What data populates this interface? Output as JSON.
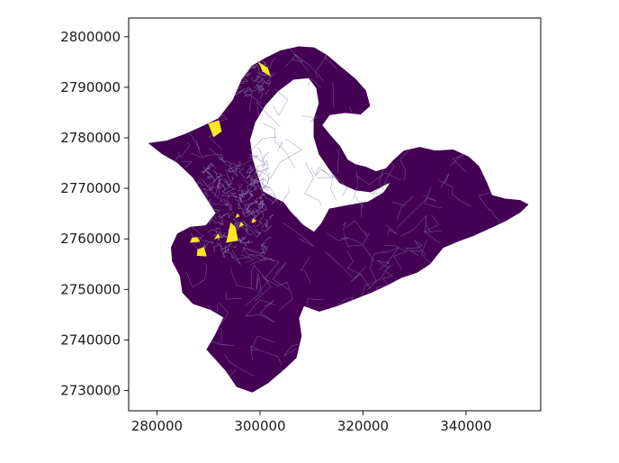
{
  "chart_data": {
    "type": "map",
    "xlim": [
      274500,
      354500
    ],
    "ylim": [
      2726000,
      2803700
    ],
    "x_ticks": [
      280000,
      300000,
      320000,
      340000
    ],
    "x_tick_labels": [
      "280000",
      "300000",
      "320000",
      "340000"
    ],
    "y_ticks": [
      2730000,
      2740000,
      2750000,
      2760000,
      2770000,
      2780000,
      2790000,
      2800000
    ],
    "y_tick_labels": [
      "2730000",
      "2740000",
      "2750000",
      "2760000",
      "2770000",
      "2780000",
      "2790000",
      "2800000"
    ],
    "colormap": "viridis",
    "colors": {
      "fill": "#440154",
      "highlight": "#fde725",
      "boundary": "#8a7aa6",
      "frame": "#1a1a1a",
      "background": "#ffffff"
    },
    "outline": [
      [
        278500,
        2778900
      ],
      [
        282000,
        2779400
      ],
      [
        285500,
        2780700
      ],
      [
        289000,
        2782300
      ],
      [
        292000,
        2783800
      ],
      [
        294800,
        2787500
      ],
      [
        296500,
        2791500
      ],
      [
        298500,
        2794200
      ],
      [
        301000,
        2795700
      ],
      [
        304000,
        2797200
      ],
      [
        307500,
        2798000
      ],
      [
        310500,
        2797800
      ],
      [
        313000,
        2796300
      ],
      [
        316000,
        2793700
      ],
      [
        318500,
        2791600
      ],
      [
        320500,
        2789300
      ],
      [
        321300,
        2786300
      ],
      [
        319500,
        2784700
      ],
      [
        316500,
        2785000
      ],
      [
        313500,
        2784600
      ],
      [
        312000,
        2782500
      ],
      [
        313500,
        2780600
      ],
      [
        315500,
        2778300
      ],
      [
        317000,
        2775600
      ],
      [
        318500,
        2774700
      ],
      [
        320500,
        2774200
      ],
      [
        322500,
        2773300
      ],
      [
        324500,
        2773900
      ],
      [
        326000,
        2775600
      ],
      [
        328000,
        2777400
      ],
      [
        331000,
        2778100
      ],
      [
        334000,
        2777400
      ],
      [
        337500,
        2777600
      ],
      [
        340500,
        2776200
      ],
      [
        342500,
        2774300
      ],
      [
        344000,
        2771100
      ],
      [
        345000,
        2768600
      ],
      [
        347500,
        2767900
      ],
      [
        350500,
        2767600
      ],
      [
        352000,
        2766800
      ],
      [
        350500,
        2765300
      ],
      [
        347500,
        2763500
      ],
      [
        344500,
        2762100
      ],
      [
        341500,
        2760700
      ],
      [
        338500,
        2759600
      ],
      [
        335500,
        2758300
      ],
      [
        333000,
        2755100
      ],
      [
        330500,
        2753400
      ],
      [
        327500,
        2752400
      ],
      [
        324500,
        2750800
      ],
      [
        321500,
        2749400
      ],
      [
        318500,
        2748200
      ],
      [
        315000,
        2746800
      ],
      [
        311500,
        2745700
      ],
      [
        308500,
        2746800
      ],
      [
        307500,
        2744300
      ],
      [
        308000,
        2740800
      ],
      [
        307000,
        2736500
      ],
      [
        304500,
        2734100
      ],
      [
        301500,
        2731500
      ],
      [
        298500,
        2729700
      ],
      [
        295500,
        2730800
      ],
      [
        293500,
        2733800
      ],
      [
        291500,
        2736100
      ],
      [
        289700,
        2738100
      ],
      [
        291300,
        2740900
      ],
      [
        293000,
        2744500
      ],
      [
        290500,
        2746000
      ],
      [
        287000,
        2747200
      ],
      [
        285000,
        2749400
      ],
      [
        284500,
        2752700
      ],
      [
        283000,
        2755600
      ],
      [
        282800,
        2758300
      ],
      [
        284000,
        2761000
      ],
      [
        286500,
        2762300
      ],
      [
        289500,
        2762600
      ],
      [
        291500,
        2765100
      ],
      [
        289500,
        2768300
      ],
      [
        287000,
        2772200
      ],
      [
        284000,
        2775100
      ],
      [
        281000,
        2776900
      ],
      [
        278500,
        2778900
      ]
    ],
    "hole": [
      [
        306500,
        2791600
      ],
      [
        309500,
        2791900
      ],
      [
        311000,
        2789800
      ],
      [
        311500,
        2786800
      ],
      [
        310500,
        2783700
      ],
      [
        310500,
        2780200
      ],
      [
        311500,
        2776800
      ],
      [
        313500,
        2773800
      ],
      [
        315500,
        2771100
      ],
      [
        318500,
        2769700
      ],
      [
        321500,
        2769300
      ],
      [
        324000,
        2770600
      ],
      [
        325500,
        2771300
      ],
      [
        324000,
        2769100
      ],
      [
        321000,
        2767300
      ],
      [
        317000,
        2766600
      ],
      [
        313500,
        2765900
      ],
      [
        312000,
        2763100
      ],
      [
        310500,
        2761300
      ],
      [
        308500,
        2762600
      ],
      [
        306000,
        2765200
      ],
      [
        304500,
        2767200
      ],
      [
        302500,
        2768200
      ],
      [
        300500,
        2769400
      ],
      [
        299500,
        2772500
      ],
      [
        298500,
        2775800
      ],
      [
        298000,
        2779600
      ],
      [
        299000,
        2783100
      ],
      [
        301000,
        2786500
      ],
      [
        303500,
        2789300
      ],
      [
        306500,
        2791600
      ]
    ],
    "highlights": [
      [
        [
          299800,
          2794900
        ],
        [
          301500,
          2793800
        ],
        [
          302000,
          2792200
        ],
        [
          300500,
          2793200
        ],
        [
          299800,
          2794900
        ]
      ],
      [
        [
          290000,
          2782800
        ],
        [
          292000,
          2783400
        ],
        [
          292500,
          2781300
        ],
        [
          291000,
          2780200
        ],
        [
          290000,
          2782800
        ]
      ],
      [
        [
          293500,
          2759300
        ],
        [
          295700,
          2759700
        ],
        [
          295200,
          2762300
        ],
        [
          294300,
          2763200
        ],
        [
          293500,
          2759300
        ]
      ],
      [
        [
          287800,
          2756700
        ],
        [
          289600,
          2756600
        ],
        [
          289100,
          2758300
        ],
        [
          287900,
          2757900
        ],
        [
          287800,
          2756700
        ]
      ],
      [
        [
          286500,
          2759300
        ],
        [
          288300,
          2759500
        ],
        [
          287800,
          2760300
        ],
        [
          286800,
          2760200
        ],
        [
          286500,
          2759300
        ]
      ],
      [
        [
          291200,
          2760000
        ],
        [
          292200,
          2760300
        ],
        [
          291900,
          2761000
        ],
        [
          291200,
          2760000
        ]
      ],
      [
        [
          296000,
          2762400
        ],
        [
          296800,
          2762800
        ],
        [
          296300,
          2763300
        ],
        [
          296000,
          2762400
        ]
      ],
      [
        [
          298400,
          2763200
        ],
        [
          299200,
          2763500
        ],
        [
          298700,
          2764000
        ],
        [
          298400,
          2763200
        ]
      ],
      [
        [
          295300,
          2764200
        ],
        [
          296000,
          2764500
        ],
        [
          295600,
          2765000
        ],
        [
          295300,
          2764200
        ]
      ]
    ]
  }
}
